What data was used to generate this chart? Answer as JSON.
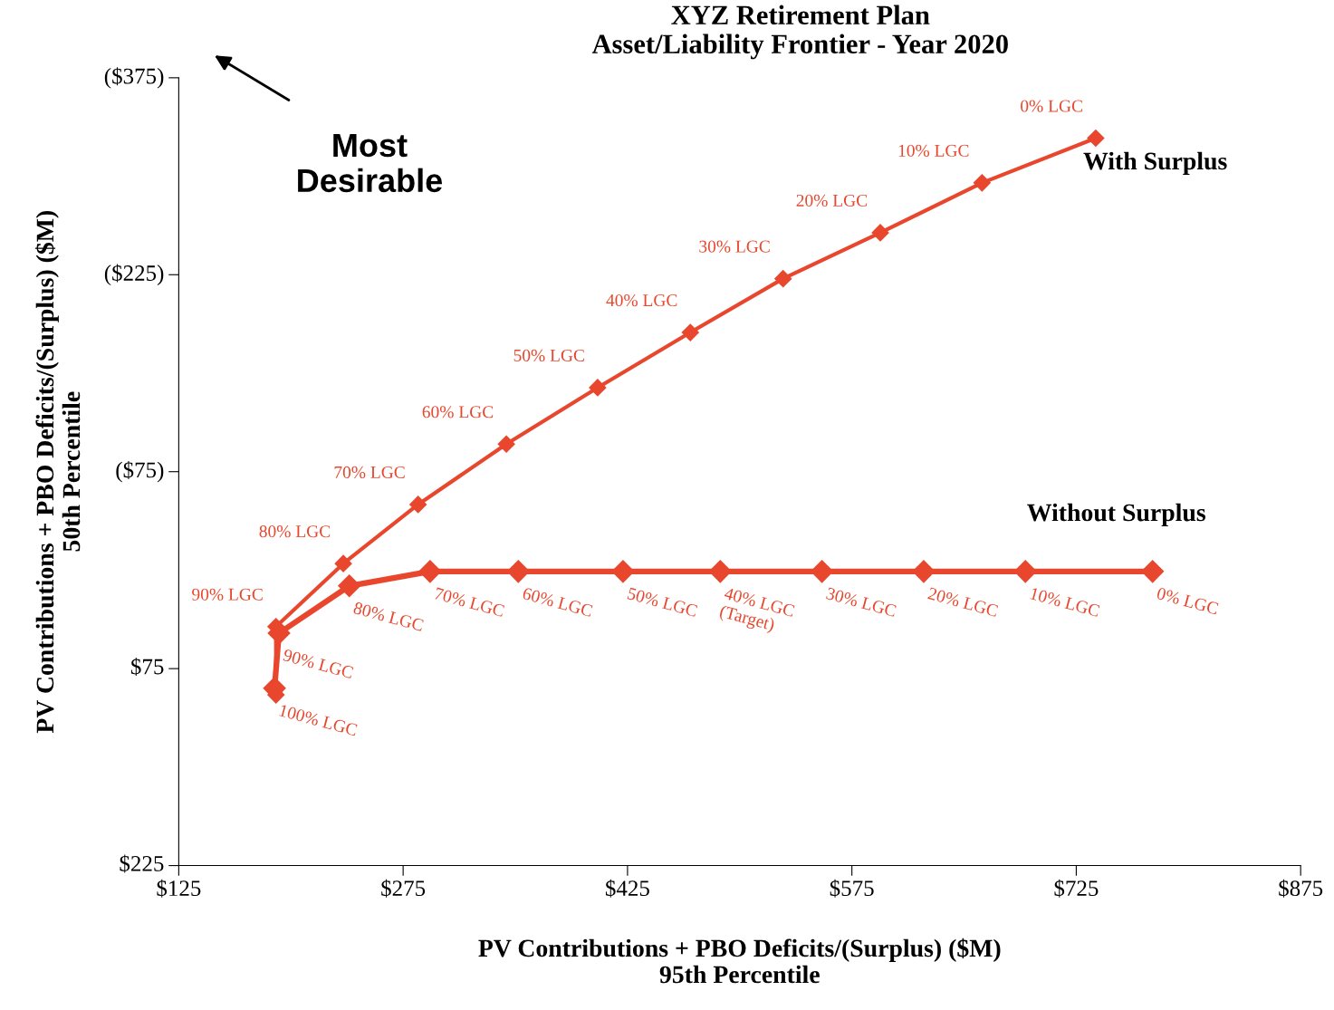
{
  "chart_data": {
    "type": "line",
    "title": "XYZ Retirement Plan\nAsset/Liability Frontier - Year 2020",
    "xlabel": "PV Contributions + PBO Deficits/(Surplus) ($M)\n95th Percentile",
    "ylabel": "PV Contributions + PBO Deficits/(Surplus) ($M)\n50th Percentile",
    "annotations": [
      "Most\nDesirable",
      {
        "text": "0% LGC",
        "x": 738,
        "y": -329
      },
      {
        "text": "10% LGC",
        "x": 662,
        "y": -295
      },
      {
        "text": "20% LGC",
        "x": 594,
        "y": -257
      },
      {
        "text": "30% LGC",
        "x": 529,
        "y": -222
      },
      {
        "text": "40% LGC",
        "x": 467,
        "y": -181
      },
      {
        "text": "50% LGC",
        "x": 405,
        "y": -139
      },
      {
        "text": "60% LGC",
        "x": 344,
        "y": -96
      },
      {
        "text": "70% LGC",
        "x": 285,
        "y": -50
      },
      {
        "text": "80% LGC",
        "x": 235,
        "y": -5
      },
      {
        "text": "90% LGC",
        "x": 190,
        "y": 43
      },
      {
        "text": "0% LGC",
        "x": 776,
        "y": 1
      },
      {
        "text": "10% LGC",
        "x": 691,
        "y": 1
      },
      {
        "text": "20% LGC",
        "x": 623,
        "y": 1
      },
      {
        "text": "30% LGC",
        "x": 555,
        "y": 1
      },
      {
        "text": "40% LGC\n(Target)",
        "x": 487,
        "y": 1
      },
      {
        "text": "50% LGC",
        "x": 422,
        "y": 1
      },
      {
        "text": "60% LGC",
        "x": 352,
        "y": 1
      },
      {
        "text": "70% LGC",
        "x": 293,
        "y": 1
      },
      {
        "text": "80% LGC",
        "x": 239,
        "y": 12
      },
      {
        "text": "90% LGC",
        "x": 192,
        "y": 48
      },
      {
        "text": "100% LGC",
        "x": 189,
        "y": 90
      }
    ],
    "series": [
      {
        "name": "With Surplus",
        "color": "#e8472e",
        "x": [
          738,
          662,
          594,
          529,
          467,
          405,
          344,
          285,
          235,
          190,
          190
        ],
        "values": [
          -329,
          -295,
          -257,
          -222,
          -181,
          -139,
          -96,
          -50,
          -5,
          43,
          95
        ]
      },
      {
        "name": "Without Surplus",
        "color": "#e8472e",
        "x": [
          776,
          691,
          623,
          555,
          487,
          422,
          352,
          293,
          239,
          192,
          189
        ],
        "values": [
          1,
          1,
          1,
          1,
          1,
          1,
          1,
          1,
          12,
          48,
          90
        ]
      }
    ],
    "xlim": [
      125,
      875
    ],
    "xticks": [
      {
        "value": 125,
        "label": "$125"
      },
      {
        "value": 275,
        "label": "$275"
      },
      {
        "value": 425,
        "label": "$425"
      },
      {
        "value": 575,
        "label": "$575"
      },
      {
        "value": 725,
        "label": "$725"
      },
      {
        "value": 875,
        "label": "$875"
      }
    ],
    "ylim": [
      225,
      -375
    ],
    "yticks": [
      {
        "value": -375,
        "label": "($375)"
      },
      {
        "value": -225,
        "label": "($225)"
      },
      {
        "value": -75,
        "label": "($75)"
      },
      {
        "value": 75,
        "label": "$75"
      },
      {
        "value": 225,
        "label": "$225"
      }
    ],
    "marker": "diamond",
    "line_style": "solid",
    "grid": false,
    "legend": false
  }
}
